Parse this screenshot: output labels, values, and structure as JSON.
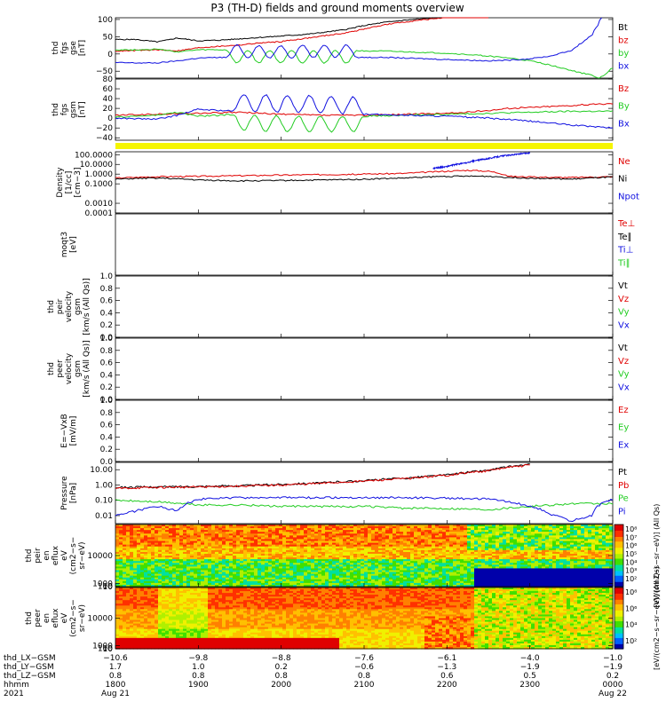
{
  "title": "P3 (TH-D) fields and ground moments overview",
  "colors": {
    "black": "#000000",
    "red": "#e00000",
    "green": "#22cc22",
    "blue": "#1010e0",
    "yellow": "#f5f500"
  },
  "chart_data": [
    {
      "type": "line",
      "panel": "fgs",
      "ylabel": [
        "thd",
        "fgs",
        "gse",
        "[nT]"
      ],
      "yticks": [
        "100",
        "50",
        "0",
        "−50"
      ],
      "ylim": [
        -70,
        105
      ],
      "series": [
        {
          "name": "Bt",
          "color": "black",
          "x": [
            1800,
            1815,
            1830,
            1845,
            1900,
            1915,
            1930,
            1945,
            2000,
            2015,
            2030,
            2045,
            2100,
            2115,
            2130,
            2145,
            2200,
            2215,
            2230
          ],
          "values": [
            42,
            42,
            35,
            46,
            38,
            40,
            44,
            48,
            52,
            56,
            62,
            70,
            82,
            92,
            98,
            103,
            108,
            112,
            118
          ]
        },
        {
          "name": "bz",
          "color": "red",
          "x": [
            1800,
            1815,
            1830,
            1845,
            1900,
            1915,
            1930,
            1945,
            2000,
            2015,
            2030,
            2045,
            2100,
            2115,
            2130,
            2145,
            2200,
            2215,
            2230
          ],
          "values": [
            8,
            10,
            12,
            9,
            18,
            22,
            26,
            32,
            36,
            44,
            52,
            60,
            72,
            85,
            93,
            100,
            106,
            110,
            115
          ]
        },
        {
          "name": "by",
          "color": "green",
          "x": [
            1800,
            1815,
            1830,
            1845,
            1900,
            1915,
            1930,
            1945,
            2000,
            2015,
            2030,
            2045,
            2100,
            2115,
            2130,
            2145,
            2200,
            2215,
            2230,
            2245,
            2300,
            2315,
            2330,
            2345,
            2350,
            2355,
            2400
          ],
          "values": [
            12,
            12,
            14,
            6,
            12,
            12,
            10,
            10,
            10,
            10,
            10,
            10,
            9,
            8,
            6,
            4,
            2,
            -2,
            -6,
            -12,
            -20,
            -32,
            -48,
            -62,
            -70,
            -58,
            -40
          ]
        },
        {
          "name": "bx",
          "color": "blue",
          "x": [
            1800,
            1815,
            1830,
            1845,
            1900,
            1915,
            1930,
            1945,
            2000,
            2015,
            2030,
            2045,
            2100,
            2115,
            2130,
            2145,
            2200,
            2215,
            2230,
            2245,
            2300,
            2315,
            2330,
            2345,
            2352
          ],
          "values": [
            -25,
            -26,
            -26,
            -20,
            -12,
            -10,
            -10,
            -12,
            -12,
            -10,
            -10,
            -10,
            -10,
            -10,
            -12,
            -14,
            -16,
            -18,
            -20,
            -18,
            -14,
            -6,
            10,
            55,
            105
          ]
        }
      ],
      "oscillation": {
        "x_start": 1920,
        "x_end": 2055,
        "cycles": 6,
        "amplitude": 40,
        "applies_to": [
          "by",
          "bx"
        ]
      },
      "legend": [
        "Bt",
        "bz",
        "by",
        "bx"
      ]
    },
    {
      "type": "line",
      "panel": "fgs_gsm",
      "ylabel": [
        "thd",
        "fgs",
        "gsm",
        "[nT]"
      ],
      "yticks": [
        "80",
        "60",
        "40",
        "20",
        "0",
        "−20",
        "−40"
      ],
      "ylim": [
        -45,
        80
      ],
      "series": [
        {
          "name": "Bz",
          "color": "red",
          "x": [
            1800,
            1830,
            1900,
            1930,
            2000,
            2030,
            2100,
            2130,
            2200,
            2215,
            2230,
            2245,
            2300,
            2330,
            2400
          ],
          "values": [
            6,
            8,
            10,
            12,
            8,
            6,
            6,
            8,
            10,
            12,
            16,
            20,
            22,
            26,
            30
          ]
        },
        {
          "name": "By",
          "color": "green",
          "x": [
            1800,
            1830,
            1845,
            1900,
            1930,
            2000,
            2030,
            2100,
            2130,
            2200,
            2230,
            2300,
            2330,
            2400
          ],
          "values": [
            2,
            6,
            12,
            4,
            8,
            4,
            4,
            4,
            6,
            8,
            10,
            12,
            14,
            14
          ]
        },
        {
          "name": "Bx",
          "color": "blue",
          "x": [
            1800,
            1830,
            1845,
            1900,
            1930,
            2000,
            2030,
            2100,
            2130,
            2200,
            2230,
            2300,
            2330,
            2400
          ],
          "values": [
            0,
            -2,
            6,
            18,
            14,
            12,
            10,
            8,
            6,
            4,
            0,
            -6,
            -14,
            -20
          ]
        }
      ],
      "oscillation": {
        "x_start": 1925,
        "x_end": 2100,
        "cycles": 6,
        "amplitude": 35,
        "applies_to": [
          "Bx",
          "By"
        ]
      },
      "legend": [
        "Bz",
        "By",
        "Bx"
      ]
    },
    {
      "type": "line",
      "panel": "density",
      "log": true,
      "ylabel": [
        "Density",
        "[1/cc]",
        "[cm−3]"
      ],
      "yticks": [
        "100.0000",
        "10.0000",
        "1.0000",
        "0.1000",
        "0.0010",
        "0.0001"
      ],
      "ylim": [
        0.0001,
        200
      ],
      "series": [
        {
          "name": "Ne",
          "color": "red",
          "x": [
            1800,
            1830,
            1900,
            1930,
            2000,
            2030,
            2100,
            2130,
            2200,
            2215,
            2230,
            2245,
            2300,
            2330,
            2400
          ],
          "values": [
            0.4,
            0.55,
            0.6,
            0.7,
            0.8,
            0.9,
            1.0,
            1.2,
            2.0,
            2.5,
            2.0,
            0.6,
            0.5,
            0.45,
            0.55
          ]
        },
        {
          "name": "Ni",
          "color": "black",
          "x": [
            1800,
            1830,
            1900,
            1930,
            2000,
            2030,
            2100,
            2130,
            2200,
            2230,
            2245,
            2300,
            2330,
            2400
          ],
          "values": [
            0.3,
            0.4,
            0.25,
            0.2,
            0.22,
            0.25,
            0.3,
            0.4,
            0.6,
            0.6,
            0.45,
            0.4,
            0.3,
            0.5
          ]
        },
        {
          "name": "Npot",
          "color": "blue",
          "x": [
            2150,
            2200,
            2215,
            2230,
            2245,
            2300
          ],
          "values": [
            4,
            6,
            15,
            40,
            90,
            150
          ]
        }
      ],
      "legend": [
        "Ne",
        "Ni",
        "Npot"
      ]
    },
    {
      "type": "line",
      "panel": "temperature",
      "log": true,
      "ylabel": [
        "moqt3",
        "[eV]"
      ],
      "legend": [
        "Te⊥",
        "Te∥",
        "Ti⊥",
        "Ti∥"
      ]
    },
    {
      "type": "line",
      "panel": "peir_velocity",
      "ylabel": [
        "thd",
        "peir",
        "velocity",
        "gsm",
        "[km/s (All Qs)]"
      ],
      "yticks": [
        "1.0",
        "0.8",
        "0.6",
        "0.4",
        "0.2",
        "0.0"
      ],
      "ylim": [
        0,
        1
      ],
      "legend": [
        "Vt",
        "Vz",
        "Vy",
        "Vx"
      ]
    },
    {
      "type": "line",
      "panel": "peer_velocity",
      "ylabel": [
        "thd",
        "peer",
        "velocity",
        "gsm",
        "[km/s (All Qs)]"
      ],
      "yticks": [
        "1.0",
        "0.8",
        "0.6",
        "0.4",
        "0.2",
        "0.0"
      ],
      "ylim": [
        0,
        1
      ],
      "legend": [
        "Vt",
        "Vz",
        "Vy",
        "Vx"
      ]
    },
    {
      "type": "line",
      "panel": "efield",
      "ylabel": [
        "E=−VxB",
        "[mV/m]"
      ],
      "yticks": [
        "1.0",
        "0.8",
        "0.6",
        "0.4",
        "0.2",
        "0.0"
      ],
      "ylim": [
        0,
        1
      ],
      "legend": [
        "Ez",
        "Ey",
        "Ex"
      ]
    },
    {
      "type": "line",
      "panel": "pressure",
      "log": true,
      "ylabel": [
        "Pressure",
        "[nPa]"
      ],
      "yticks": [
        "10.00",
        "1.00",
        "0.10",
        "0.01"
      ],
      "ylim": [
        0.003,
        30
      ],
      "series": [
        {
          "name": "Pt",
          "color": "black",
          "x": [
            1800,
            1830,
            1900,
            1930,
            2000,
            2030,
            2100,
            2130,
            2200,
            2230,
            2300
          ],
          "values": [
            0.7,
            0.75,
            0.8,
            0.9,
            1.1,
            1.4,
            1.9,
            2.8,
            4.5,
            9,
            22
          ]
        },
        {
          "name": "Pb",
          "color": "red",
          "x": [
            1800,
            1830,
            1900,
            1930,
            2000,
            2030,
            2100,
            2130,
            2200,
            2230,
            2300
          ],
          "values": [
            0.6,
            0.7,
            0.75,
            0.85,
            1.0,
            1.3,
            1.8,
            2.6,
            4.3,
            8.5,
            20
          ]
        },
        {
          "name": "Pe",
          "color": "green",
          "x": [
            1800,
            1830,
            1900,
            1930,
            2000,
            2030,
            2100,
            2130,
            2200,
            2230,
            2300,
            2330,
            2400
          ],
          "values": [
            0.1,
            0.08,
            0.05,
            0.05,
            0.04,
            0.04,
            0.04,
            0.03,
            0.03,
            0.025,
            0.04,
            0.06,
            0.06
          ]
        },
        {
          "name": "Pi",
          "color": "blue",
          "x": [
            1800,
            1815,
            1830,
            1845,
            1900,
            1930,
            2000,
            2030,
            2100,
            2130,
            2200,
            2230,
            2300,
            2315,
            2330,
            2345,
            2400
          ],
          "values": [
            0.01,
            0.02,
            0.04,
            0.02,
            0.12,
            0.15,
            0.15,
            0.15,
            0.15,
            0.15,
            0.14,
            0.12,
            0.04,
            0.012,
            0.004,
            0.01,
            0.12
          ]
        }
      ],
      "legend": [
        "Pt",
        "Pb",
        "Pe",
        "Pi"
      ]
    },
    {
      "type": "heatmap",
      "panel": "peir_eflux",
      "ylabel": [
        "thd",
        "peir",
        "en",
        "eflux",
        "eV",
        "(cm2−s−",
        "sr−eV)"
      ],
      "yticks": [
        "10000",
        "1000",
        "100",
        "10"
      ],
      "ylim": [
        5,
        20000
      ],
      "colorbar": {
        "ticks": [
          "10⁸",
          "10⁷",
          "10⁶",
          "10⁵",
          "10⁴",
          "10³",
          "10²"
        ],
        "label": "[eV/(cm2−s−sr−eV)] (All Qs)"
      }
    },
    {
      "type": "heatmap",
      "panel": "peer_eflux",
      "ylabel": [
        "thd",
        "peer",
        "en",
        "eflux",
        "eV",
        "(cm2−s−",
        "sr−eV)"
      ],
      "yticks": [
        "10000",
        "1000",
        "100",
        "10"
      ],
      "ylim": [
        5,
        20000
      ],
      "colorbar": {
        "ticks": [
          "10⁸",
          "10⁶",
          "10⁴",
          "10²"
        ],
        "label": "[eV/(cm2−s−sr−eV)] (All Qs)"
      }
    }
  ],
  "xaxis": {
    "labels": [
      "thd_LX−GSM",
      "thd_LY−GSM",
      "thd_LZ−GSM",
      "hhmm",
      "2021"
    ],
    "times": [
      1800,
      1900,
      2000,
      2100,
      2200,
      2300,
      2400
    ],
    "columns": [
      {
        "lx": "−10.6",
        "ly": "1.7",
        "lz": "0.8",
        "hhmm": "1800",
        "date": "Aug 21"
      },
      {
        "lx": "−9.8",
        "ly": "1.0",
        "lz": "0.8",
        "hhmm": "1900",
        "date": ""
      },
      {
        "lx": "−8.8",
        "ly": "0.2",
        "lz": "0.8",
        "hhmm": "2000",
        "date": ""
      },
      {
        "lx": "−7.6",
        "ly": "−0.6",
        "lz": "0.8",
        "hhmm": "2100",
        "date": ""
      },
      {
        "lx": "−6.1",
        "ly": "−1.3",
        "lz": "0.6",
        "hhmm": "2200",
        "date": ""
      },
      {
        "lx": "−4.0",
        "ly": "−1.9",
        "lz": "0.5",
        "hhmm": "2300",
        "date": ""
      },
      {
        "lx": "−1.0",
        "ly": "−1.9",
        "lz": "0.2",
        "hhmm": "0000",
        "date": "Aug 22"
      }
    ]
  }
}
